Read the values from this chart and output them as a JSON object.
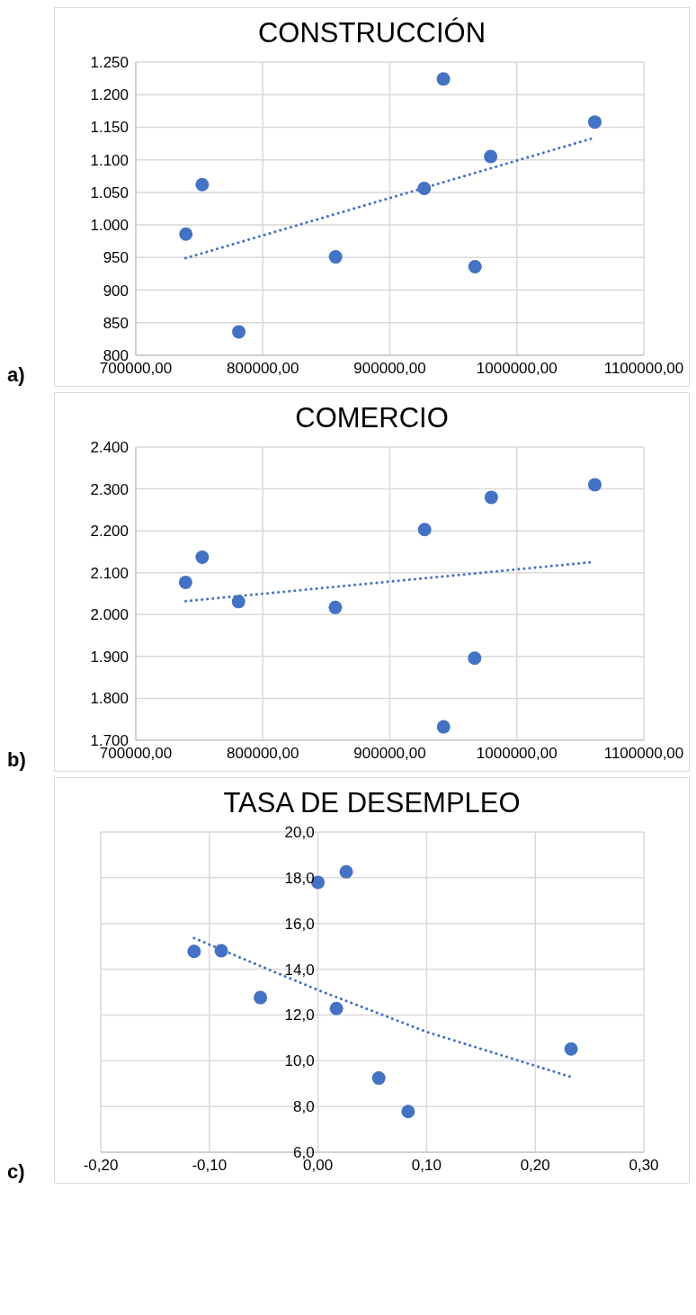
{
  "chart_data": [
    {
      "type": "scatter",
      "title": "CONSTRUCCIÓN",
      "annotations": [
        "a)"
      ],
      "marker": "circle",
      "grid": true,
      "xlim": [
        700000,
        1100000
      ],
      "xticks": [
        {
          "value": 700000,
          "label": "700000,00"
        },
        {
          "value": 800000,
          "label": "800000,00"
        },
        {
          "value": 900000,
          "label": "900000,00"
        },
        {
          "value": 1000000,
          "label": "1000000,00"
        },
        {
          "value": 1100000,
          "label": "1100000,00"
        }
      ],
      "ylim": [
        800,
        1250
      ],
      "yticks": [
        800,
        850,
        900,
        950,
        {
          "value": 1000,
          "label": "1.000"
        },
        {
          "value": 1050,
          "label": "1.050"
        },
        {
          "value": 1100,
          "label": "1.100"
        },
        {
          "value": 1150,
          "label": "1.150"
        },
        {
          "value": 1200,
          "label": "1.200"
        },
        {
          "value": 1250,
          "label": "1.250"
        }
      ],
      "series": [
        {
          "color": "#4472c4",
          "x": [
            739450,
            752300,
            781100,
            857300,
            927100,
            942200,
            967100,
            979400,
            1061400
          ],
          "values": [
            986,
            1062,
            836,
            951,
            1056,
            1224,
            936,
            1105,
            1158
          ]
        },
        {
          "type": "line",
          "color": "#4472c4",
          "line_style": "dotted",
          "marker": "none",
          "x": [
            739200,
            1061400
          ],
          "values": [
            949,
            1134
          ]
        }
      ]
    },
    {
      "type": "scatter",
      "title": "COMERCIO",
      "annotations": [
        "b)"
      ],
      "marker": "circle",
      "grid": true,
      "xlim": [
        700000,
        1100000
      ],
      "xticks": [
        {
          "value": 700000,
          "label": "700000,00"
        },
        {
          "value": 800000,
          "label": "800000,00"
        },
        {
          "value": 900000,
          "label": "900000,00"
        },
        {
          "value": 1000000,
          "label": "1000000,00"
        },
        {
          "value": 1100000,
          "label": "1100000,00"
        }
      ],
      "ylim": [
        1700,
        2400
      ],
      "yticks": [
        {
          "value": 1700,
          "label": "1.700"
        },
        {
          "value": 1800,
          "label": "1.800"
        },
        {
          "value": 1900,
          "label": "1.900"
        },
        {
          "value": 2000,
          "label": "2.000"
        },
        {
          "value": 2100,
          "label": "2.100"
        },
        {
          "value": 2200,
          "label": "2.200"
        },
        {
          "value": 2300,
          "label": "2.300"
        },
        {
          "value": 2400,
          "label": "2.400"
        }
      ],
      "series": [
        {
          "color": "#4472c4",
          "x": [
            739200,
            752300,
            780900,
            857100,
            927400,
            942300,
            966800,
            979900,
            1061400
          ],
          "values": [
            2077,
            2137,
            2031,
            2017,
            2203,
            1732,
            1896,
            2280,
            2310
          ]
        },
        {
          "type": "line",
          "color": "#4472c4",
          "line_style": "dotted",
          "marker": "none",
          "x": [
            739200,
            1058700
          ],
          "values": [
            2032,
            2125
          ]
        }
      ]
    },
    {
      "type": "scatter",
      "title": "TASA DE DESEMPLEO",
      "annotations": [
        "c)"
      ],
      "marker": "circle",
      "grid": true,
      "xlim": [
        -0.2,
        0.3
      ],
      "xticks": [
        {
          "value": -0.2,
          "label": "-0,20"
        },
        {
          "value": -0.1,
          "label": "-0,10"
        },
        {
          "value": 0,
          "label": "0,00"
        },
        {
          "value": 0.1,
          "label": "0,10"
        },
        {
          "value": 0.2,
          "label": "0,20"
        },
        {
          "value": 0.3,
          "label": "0,30"
        }
      ],
      "ylim": [
        6,
        20
      ],
      "yticks": [
        {
          "value": 6,
          "label": "6,0"
        },
        {
          "value": 8,
          "label": "8,0"
        },
        {
          "value": 10,
          "label": "10,0"
        },
        {
          "value": 12,
          "label": "12,0"
        },
        {
          "value": 14,
          "label": "14,0"
        },
        {
          "value": 16,
          "label": "16,0"
        },
        {
          "value": 18,
          "label": "18,0"
        },
        {
          "value": 20,
          "label": "20,0"
        }
      ],
      "series": [
        {
          "color": "#4472c4",
          "x": [
            -0.114,
            -0.089,
            -0.053,
            0.0,
            0.026,
            0.017,
            0.056,
            0.083,
            0.233
          ],
          "values": [
            14.78,
            14.81,
            12.76,
            17.8,
            18.26,
            12.28,
            9.24,
            7.78,
            10.51
          ]
        },
        {
          "type": "line",
          "color": "#4472c4",
          "line_style": "dotted",
          "marker": "none",
          "x": [
            -0.114,
            -0.046,
            0.0,
            0.1,
            0.233
          ],
          "values": [
            15.36,
            14.0,
            13.09,
            11.26,
            9.29
          ]
        }
      ]
    }
  ]
}
